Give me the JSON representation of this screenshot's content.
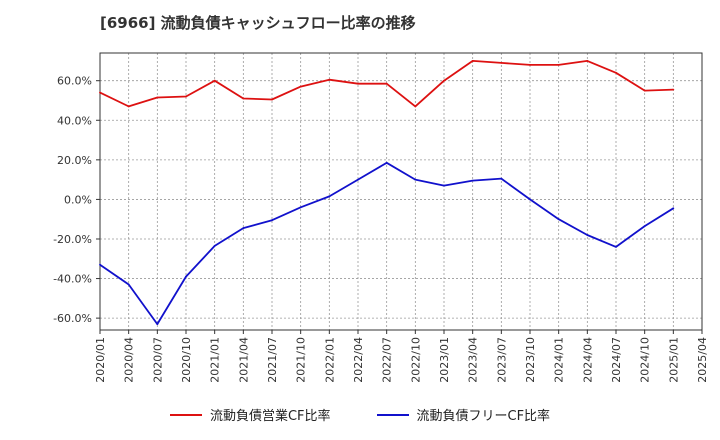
{
  "chart_data": {
    "type": "line",
    "title": "[6966]  流動負債キャッシュフロー比率の推移",
    "x": [
      "2020/01",
      "2020/04",
      "2020/07",
      "2020/10",
      "2021/01",
      "2021/04",
      "2021/07",
      "2021/10",
      "2022/01",
      "2022/04",
      "2022/07",
      "2022/10",
      "2023/01",
      "2023/04",
      "2023/07",
      "2023/10",
      "2024/01",
      "2024/04",
      "2024/07",
      "2024/10",
      "2025/01",
      "2025/04"
    ],
    "ylim": [
      -66,
      74
    ],
    "yticks": [
      -60,
      -40,
      -20,
      0,
      20,
      40,
      60
    ],
    "ytick_labels": [
      "-60.0%",
      "-40.0%",
      "-20.0%",
      "0.0%",
      "20.0%",
      "40.0%",
      "60.0%"
    ],
    "grid": true,
    "legend_position": "bottom",
    "series": [
      {
        "name": "流動負債営業CF比率",
        "color": "#dd1111",
        "values": [
          54.0,
          47.0,
          51.5,
          52.0,
          60.0,
          51.0,
          50.5,
          57.0,
          60.5,
          58.5,
          58.5,
          47.0,
          60.0,
          70.0,
          69.0,
          68.0,
          68.0,
          70.0,
          64.0,
          55.0,
          55.5,
          null
        ]
      },
      {
        "name": "流動負債フリーCF比率",
        "color": "#1111cc",
        "values": [
          -33.0,
          -43.0,
          -63.0,
          -39.0,
          -23.5,
          -14.5,
          -10.5,
          -4.0,
          1.5,
          10.0,
          18.5,
          10.0,
          7.0,
          9.5,
          10.5,
          0.0,
          -10.0,
          -18.0,
          -24.0,
          -13.5,
          -4.5,
          null
        ]
      }
    ]
  }
}
